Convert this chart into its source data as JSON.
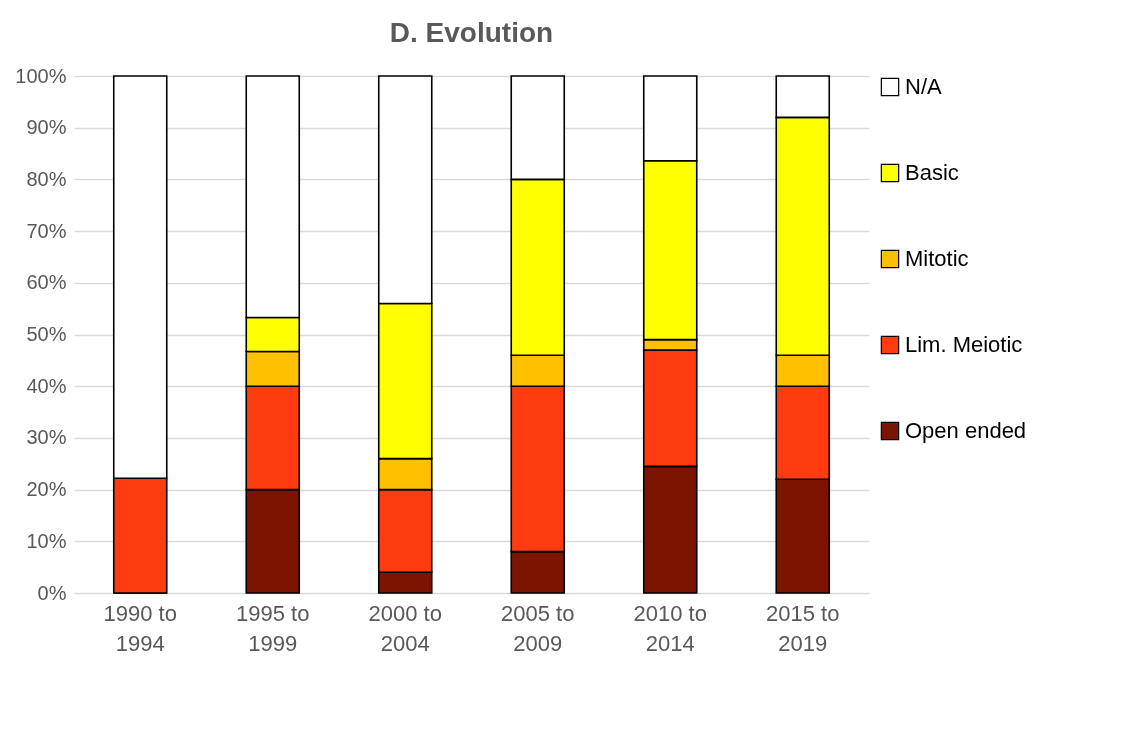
{
  "chart_data": {
    "type": "bar",
    "title": "D. Evolution",
    "stacked": true,
    "categories": [
      "1990 to 1994",
      "1995 to 1999",
      "2000 to 2004",
      "2005 to 2009",
      "2010 to 2014",
      "2015 to 2019"
    ],
    "series": [
      {
        "name": "Open ended",
        "color": "#7b1502",
        "values": [
          0,
          20,
          4,
          8,
          24.5,
          22
        ]
      },
      {
        "name": "Lim. Meiotic",
        "color": "#ff3b0f",
        "values": [
          22.2,
          20,
          16,
          32,
          22.5,
          18
        ]
      },
      {
        "name": "Mitotic",
        "color": "#ffc000",
        "values": [
          0,
          6.7,
          6,
          6,
          2,
          6
        ]
      },
      {
        "name": "Basic",
        "color": "#ffff00",
        "values": [
          0,
          6.6,
          30,
          34,
          34.6,
          46
        ]
      },
      {
        "name": "N/A",
        "color": "#ffffff",
        "values": [
          77.8,
          46.7,
          44,
          20,
          16.4,
          8
        ]
      }
    ],
    "ylim": [
      0,
      100
    ],
    "yticks": [
      {
        "value": 0,
        "label": "0%"
      },
      {
        "value": 10,
        "label": "10%"
      },
      {
        "value": 20,
        "label": "20%"
      },
      {
        "value": 30,
        "label": "30%"
      },
      {
        "value": 40,
        "label": "40%"
      },
      {
        "value": 50,
        "label": "50%"
      },
      {
        "value": 60,
        "label": "60%"
      },
      {
        "value": 70,
        "label": "70%"
      },
      {
        "value": 80,
        "label": "80%"
      },
      {
        "value": 90,
        "label": "90%"
      },
      {
        "value": 100,
        "label": "100%"
      }
    ],
    "grid": "y",
    "legend": "right"
  }
}
